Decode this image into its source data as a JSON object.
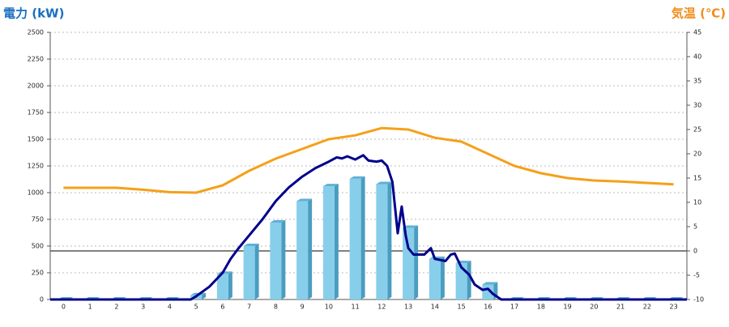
{
  "chart_data": {
    "type": "bar",
    "y_label": "電力 (kW)",
    "y2_label": "気温 (℃)",
    "categories": [
      "0",
      "1",
      "2",
      "3",
      "4",
      "5",
      "6",
      "7",
      "8",
      "9",
      "10",
      "11",
      "12",
      "13",
      "14",
      "15",
      "16",
      "17",
      "18",
      "19",
      "20",
      "21",
      "22",
      "23"
    ],
    "xlim": [
      -0.5,
      23.5
    ],
    "ylim": [
      0,
      2500
    ],
    "yticks": [
      0,
      250,
      500,
      750,
      1000,
      1250,
      1500,
      1750,
      2000,
      2250,
      2500
    ],
    "y2lim": [
      -10,
      45
    ],
    "y2ticks": [
      -10,
      -5,
      0,
      5,
      10,
      15,
      20,
      25,
      30,
      35,
      40,
      45
    ],
    "grid": true,
    "series": [
      {
        "type": "bar",
        "color": "#87ceeb",
        "values": [
          0,
          0,
          0,
          0,
          0,
          40,
          240,
          500,
          720,
          920,
          1060,
          1130,
          1080,
          670,
          380,
          340,
          140,
          0,
          0,
          0,
          0,
          0,
          0,
          0
        ]
      },
      {
        "type": "line",
        "color": "#00008b",
        "x": [
          -0.5,
          4.8,
          5,
          5.5,
          6,
          6.3,
          6.6,
          7,
          7.5,
          8,
          8.5,
          9,
          9.5,
          10,
          10.3,
          10.5,
          10.7,
          11,
          11.3,
          11.5,
          11.8,
          12,
          12.2,
          12.4,
          12.6,
          12.75,
          12.9,
          13,
          13.2,
          13.6,
          13.85,
          14,
          14.4,
          14.6,
          14.75,
          15,
          15.3,
          15.5,
          15.8,
          16,
          16.2,
          16.5,
          23.5
        ],
        "values": [
          0,
          0,
          30,
          120,
          250,
          380,
          480,
          600,
          750,
          920,
          1050,
          1150,
          1230,
          1290,
          1330,
          1320,
          1340,
          1310,
          1350,
          1300,
          1290,
          1300,
          1250,
          1100,
          620,
          870,
          600,
          480,
          420,
          420,
          480,
          380,
          360,
          420,
          430,
          300,
          230,
          140,
          90,
          100,
          50,
          0,
          0
        ]
      },
      {
        "type": "line",
        "color": "#f5a01a",
        "axis": "y2",
        "values": [
          13,
          13,
          13,
          12.6,
          12.1,
          12,
          13.5,
          16.5,
          19,
          21,
          23,
          23.8,
          25.3,
          25,
          23.3,
          22.5,
          20,
          17.5,
          16,
          15,
          14.5,
          14.3,
          14,
          13.7
        ]
      }
    ]
  }
}
